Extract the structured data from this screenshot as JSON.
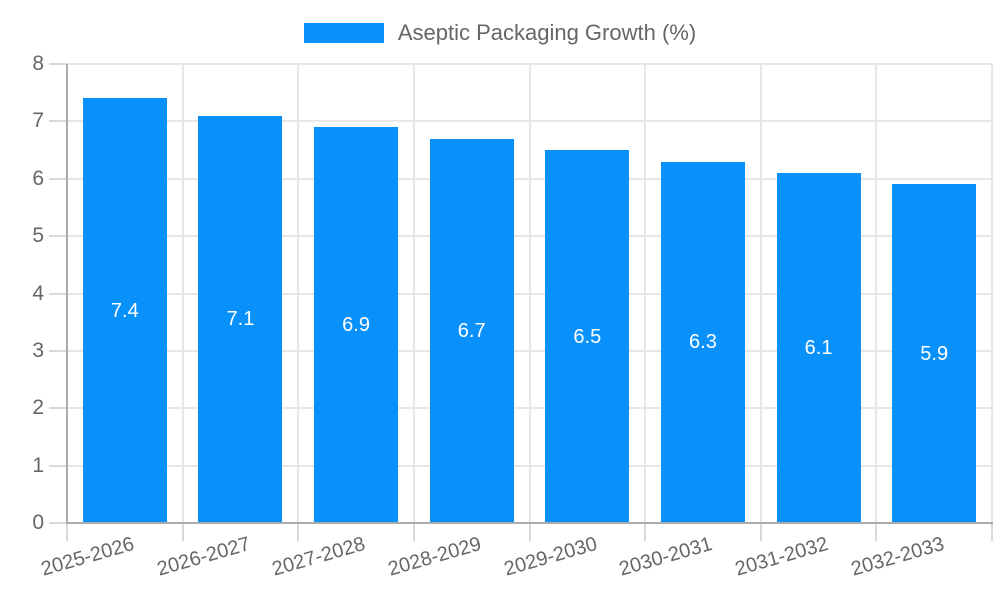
{
  "legend": {
    "label": "Aseptic Packaging Growth (%)"
  },
  "colors": {
    "bar": "#0991fb",
    "value_label_text": "#ffffff",
    "axis_text": "#666666",
    "axis_line": "#ababab",
    "gridline": "#e7e7e7",
    "tick_mark": "#d9d9d9",
    "background": "#ffffff"
  },
  "chart_data": {
    "type": "bar",
    "title": "",
    "categories": [
      "2025-2026",
      "2026-2027",
      "2027-2028",
      "2028-2029",
      "2029-2030",
      "2030-2031",
      "2031-2032",
      "2032-2033"
    ],
    "series": [
      {
        "name": "Aseptic Packaging Growth (%)",
        "values": [
          7.4,
          7.1,
          6.9,
          6.7,
          6.5,
          6.3,
          6.1,
          5.9
        ]
      }
    ],
    "value_labels": [
      "7.4",
      "7.1",
      "6.9",
      "6.7",
      "6.5",
      "6.3",
      "6.1",
      "5.9"
    ],
    "xlabel": "",
    "ylabel": "",
    "ylim": [
      0,
      8
    ],
    "y_ticks": [
      0,
      1,
      2,
      3,
      4,
      5,
      6,
      7,
      8
    ],
    "grid": true,
    "legend_position": "top-center",
    "x_tick_rotation_deg": -16
  }
}
